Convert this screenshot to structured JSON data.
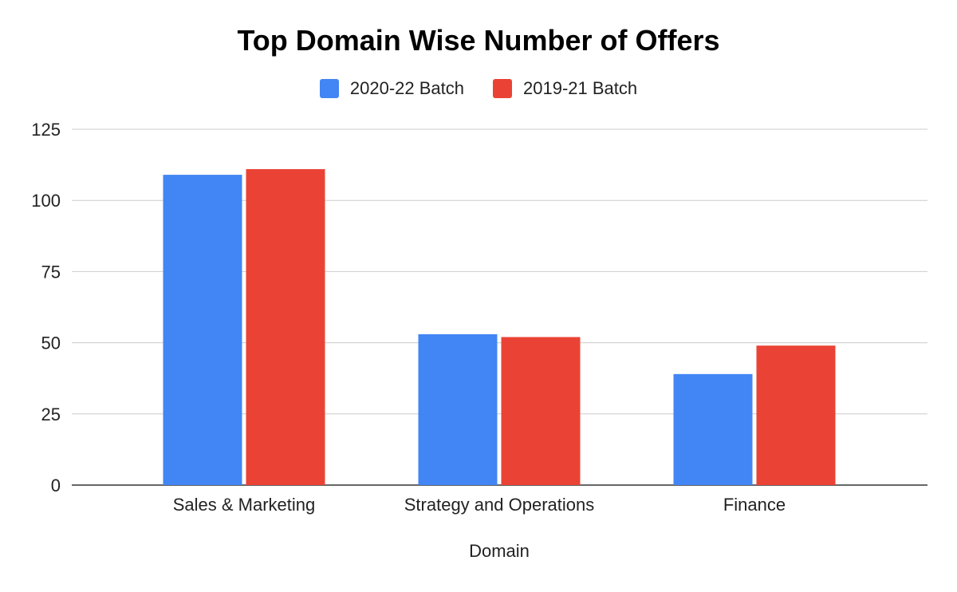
{
  "chart_data": {
    "type": "bar",
    "title": "Top Domain Wise Number of Offers",
    "xlabel": "Domain",
    "ylabel": "",
    "categories": [
      "Sales & Marketing",
      "Strategy and Operations",
      "Finance"
    ],
    "series": [
      {
        "name": "2020-22 Batch",
        "color": "#4285f4",
        "values": [
          109,
          53,
          39
        ]
      },
      {
        "name": "2019-21 Batch",
        "color": "#ea4335",
        "values": [
          111,
          52,
          49
        ]
      }
    ],
    "ylim": [
      0,
      125
    ],
    "yticks": [
      "0",
      "25",
      "50",
      "75",
      "100",
      "125"
    ],
    "grid": true,
    "legend_position": "top"
  }
}
